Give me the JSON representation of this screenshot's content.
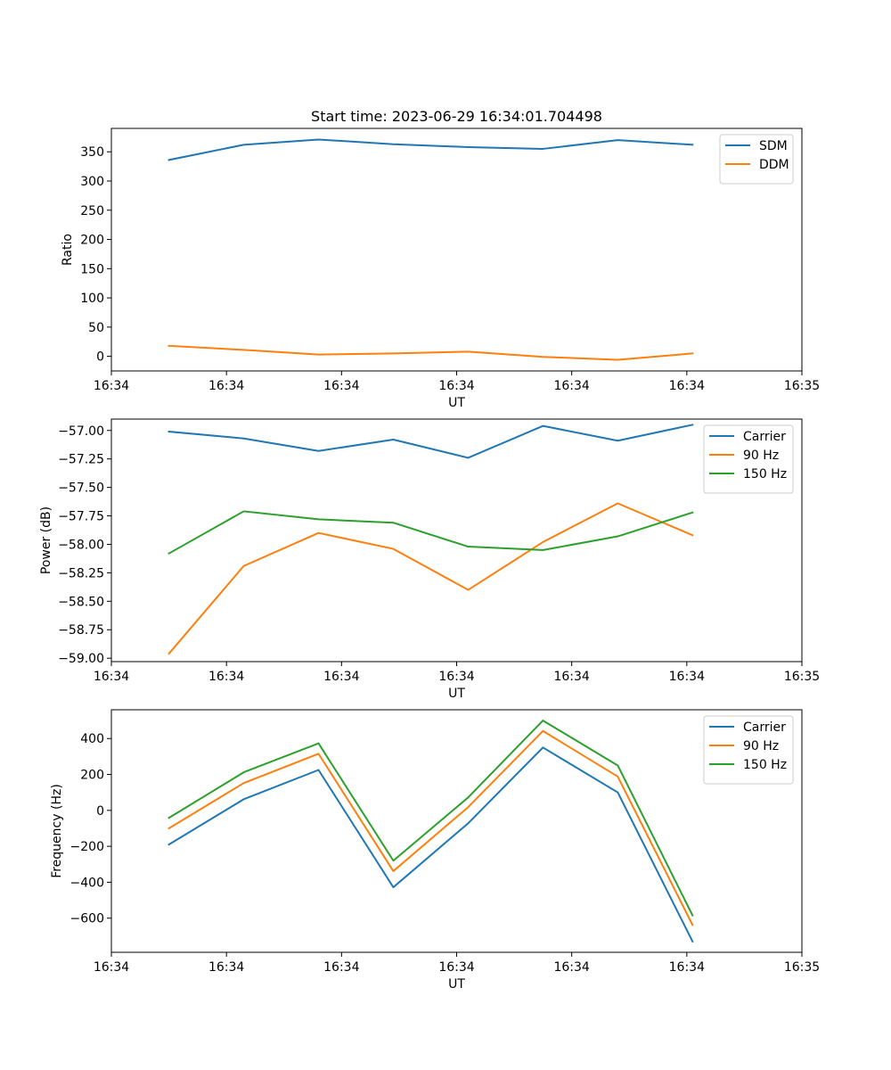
{
  "figure": {
    "title": "Start time: 2023-06-29 16:34:01.704498"
  },
  "chart_data": [
    {
      "type": "line",
      "title": "Start time: 2023-06-29 16:34:01.704498",
      "xlabel": "UT",
      "ylabel": "Ratio",
      "x_ticks": [
        "16:34",
        "16:34",
        "16:34",
        "16:34",
        "16:34",
        "16:34",
        "16:35"
      ],
      "xlim": [
        0,
        6
      ],
      "ylim": [
        -25,
        390
      ],
      "y_ticks": [
        0,
        50,
        100,
        150,
        200,
        250,
        300,
        350
      ],
      "y_tick_labels": [
        "0",
        "50",
        "100",
        "150",
        "200",
        "250",
        "300",
        "350"
      ],
      "x": [
        0.5,
        1.15,
        1.8,
        2.45,
        3.1,
        3.75,
        4.4,
        5.05
      ],
      "legend_position": "upper right",
      "series": [
        {
          "name": "SDM",
          "color": "#1f77b4",
          "values": [
            336,
            362,
            371,
            363,
            358,
            355,
            370,
            362
          ]
        },
        {
          "name": "DDM",
          "color": "#ff7f0e",
          "values": [
            18,
            11,
            3,
            5,
            8,
            -1,
            -6,
            5
          ]
        }
      ]
    },
    {
      "type": "line",
      "xlabel": "UT",
      "ylabel": "Power (dB)",
      "x_ticks": [
        "16:34",
        "16:34",
        "16:34",
        "16:34",
        "16:34",
        "16:34",
        "16:35"
      ],
      "xlim": [
        0,
        6
      ],
      "ylim": [
        -59.03,
        -56.9
      ],
      "y_ticks": [
        -59.0,
        -58.75,
        -58.5,
        -58.25,
        -58.0,
        -57.75,
        -57.5,
        -57.25,
        -57.0
      ],
      "y_tick_labels": [
        "−59.00",
        "−58.75",
        "−58.50",
        "−58.25",
        "−58.00",
        "−57.75",
        "−57.50",
        "−57.25",
        "−57.00"
      ],
      "x": [
        0.5,
        1.15,
        1.8,
        2.45,
        3.1,
        3.75,
        4.4,
        5.05
      ],
      "legend_position": "upper right",
      "series": [
        {
          "name": "Carrier",
          "color": "#1f77b4",
          "values": [
            -57.01,
            -57.07,
            -57.18,
            -57.08,
            -57.24,
            -56.96,
            -57.09,
            -56.95
          ]
        },
        {
          "name": "90 Hz",
          "color": "#ff7f0e",
          "values": [
            -58.96,
            -58.19,
            -57.9,
            -58.04,
            -58.4,
            -57.98,
            -57.64,
            -57.92
          ]
        },
        {
          "name": "150 Hz",
          "color": "#2ca02c",
          "values": [
            -58.08,
            -57.71,
            -57.78,
            -57.81,
            -58.02,
            -58.05,
            -57.93,
            -57.72
          ]
        }
      ]
    },
    {
      "type": "line",
      "xlabel": "UT",
      "ylabel": "Frequency (Hz)",
      "x_ticks": [
        "16:34",
        "16:34",
        "16:34",
        "16:34",
        "16:34",
        "16:34",
        "16:35"
      ],
      "xlim": [
        0,
        6
      ],
      "ylim": [
        -790,
        560
      ],
      "y_ticks": [
        -600,
        -400,
        -200,
        0,
        200,
        400
      ],
      "y_tick_labels": [
        "−600",
        "−400",
        "−200",
        "0",
        "200",
        "400"
      ],
      "x": [
        0.5,
        1.15,
        1.8,
        2.45,
        3.1,
        3.75,
        4.4,
        5.05
      ],
      "legend_position": "upper right",
      "series": [
        {
          "name": "Carrier",
          "color": "#1f77b4",
          "values": [
            -190,
            62,
            225,
            -428,
            -72,
            350,
            100,
            -730
          ]
        },
        {
          "name": "90 Hz",
          "color": "#ff7f0e",
          "values": [
            -100,
            152,
            315,
            -338,
            18,
            442,
            188,
            -638
          ]
        },
        {
          "name": "150 Hz",
          "color": "#2ca02c",
          "values": [
            -42,
            212,
            373,
            -280,
            72,
            500,
            250,
            -585
          ]
        }
      ]
    }
  ]
}
